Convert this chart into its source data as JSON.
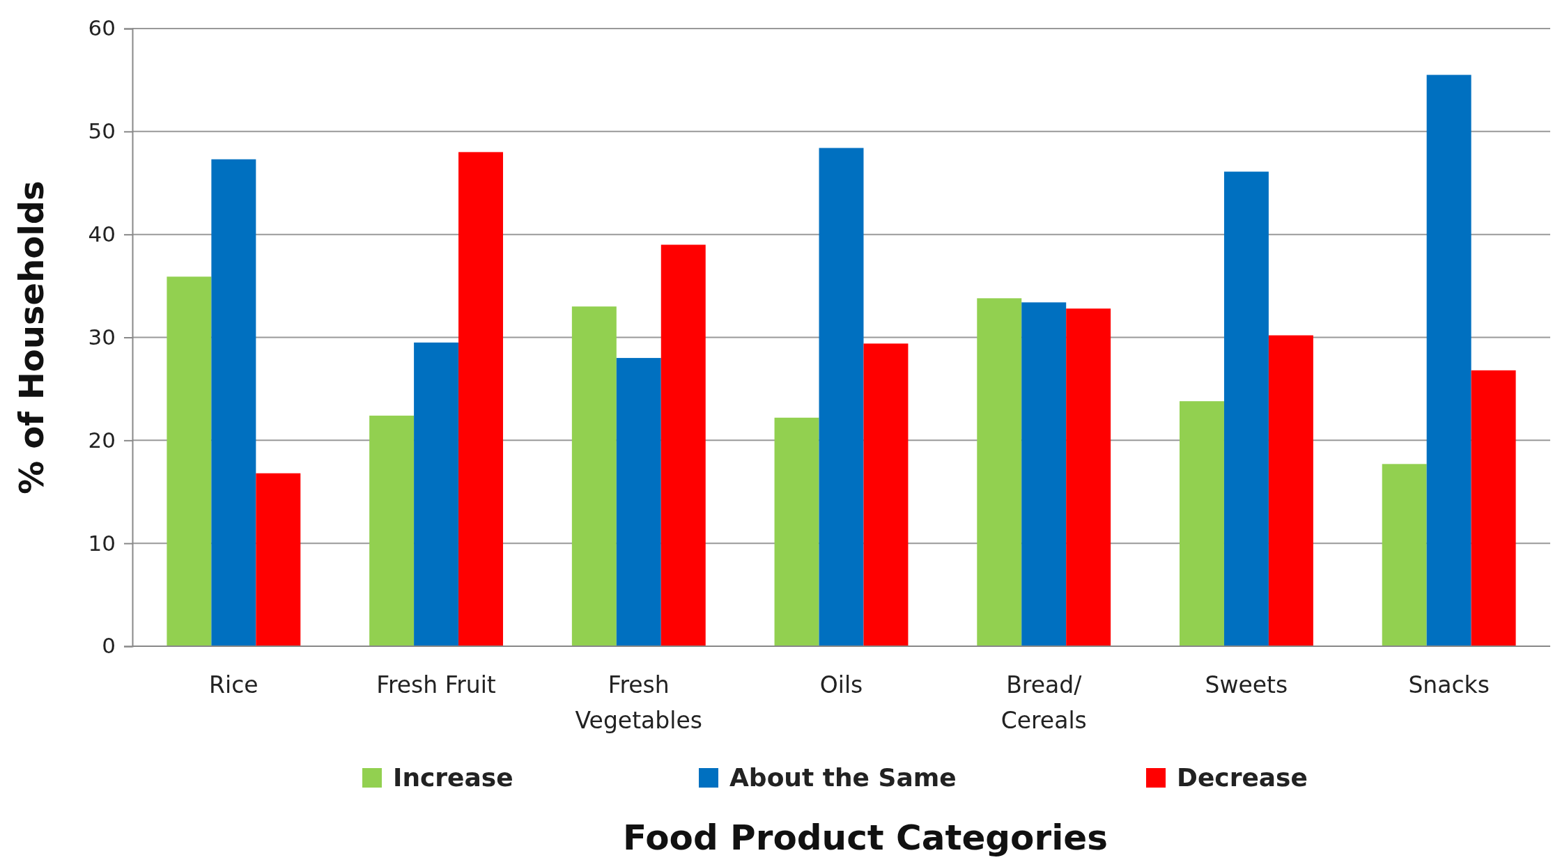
{
  "chart_data": {
    "type": "bar",
    "xlabel": "Food Product Categories",
    "ylabel": "% of Households",
    "categories": [
      "Rice",
      "Fresh Fruit",
      "Fresh\nVegetables",
      "Oils",
      "Bread/\nCereals",
      "Sweets",
      "Snacks"
    ],
    "series": [
      {
        "name": "Increase",
        "color": "#92d050",
        "values": [
          35.9,
          22.4,
          33,
          22.2,
          33.8,
          23.8,
          17.7
        ]
      },
      {
        "name": "About the Same",
        "color": "#0070c0",
        "values": [
          47.3,
          29.5,
          28,
          48.4,
          33.4,
          46.1,
          55.5
        ]
      },
      {
        "name": "Decrease",
        "color": "#ff0000",
        "values": [
          16.8,
          48,
          39,
          29.4,
          32.8,
          30.2,
          26.8
        ]
      }
    ],
    "ylim": [
      0,
      60
    ],
    "yticks": [
      0,
      10,
      20,
      30,
      40,
      50,
      60
    ],
    "grid": "y",
    "legend": "bottom"
  }
}
